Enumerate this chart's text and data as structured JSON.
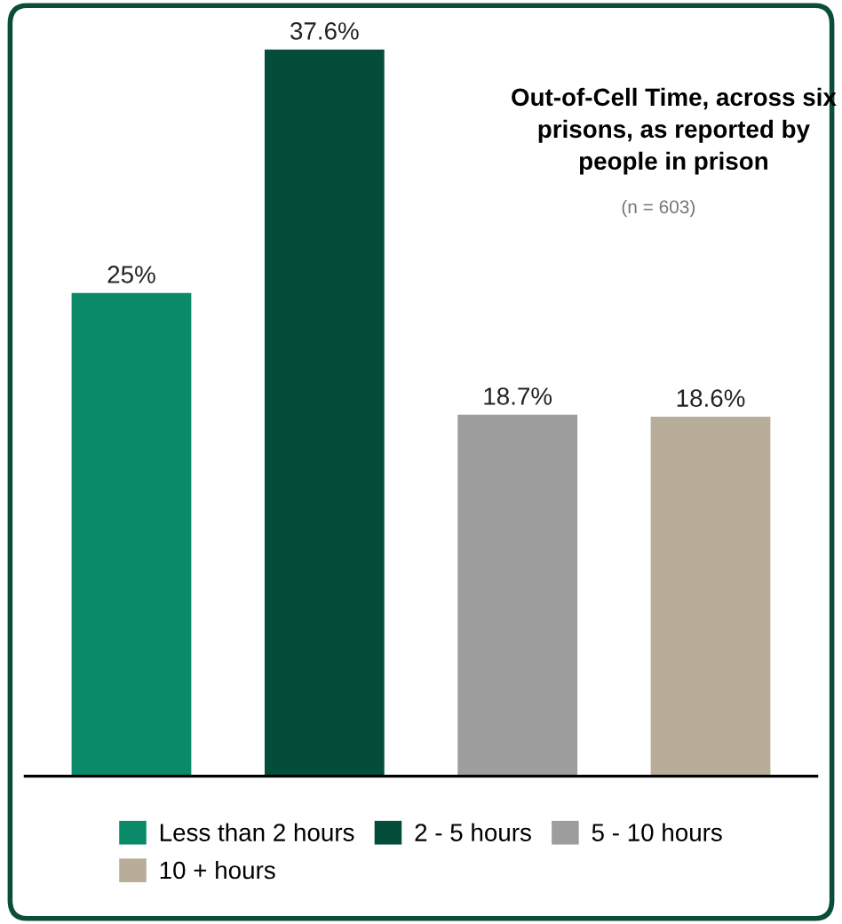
{
  "chart_data": {
    "type": "bar",
    "title": "Out-of-Cell Time, across six prisons, as reported by people in prison",
    "subtitle": "(n = 603)",
    "categories": [
      null,
      null,
      null,
      null
    ],
    "series": [
      {
        "name": "Less than 2 hours",
        "color": "#0b8a6a",
        "values": [
          25,
          null,
          null,
          null
        ],
        "value_labels": [
          "25%",
          null,
          null,
          null
        ]
      },
      {
        "name": "2 - 5 hours",
        "color": "#034d3a",
        "values": [
          null,
          37.6,
          null,
          null
        ],
        "value_labels": [
          null,
          "37.6%",
          null,
          null
        ]
      },
      {
        "name": "5 - 10 hours",
        "color": "#9d9d9d",
        "values": [
          null,
          null,
          18.7,
          null
        ],
        "value_labels": [
          null,
          null,
          "18.7%",
          null
        ]
      },
      {
        "name": "10 + hours",
        "color": "#b8ad98",
        "values": [
          null,
          null,
          null,
          18.6
        ],
        "value_labels": [
          null,
          null,
          null,
          "18.6%"
        ]
      }
    ],
    "stacked": true,
    "legend": "bottom",
    "tick_labels": false,
    "grid": false
  }
}
